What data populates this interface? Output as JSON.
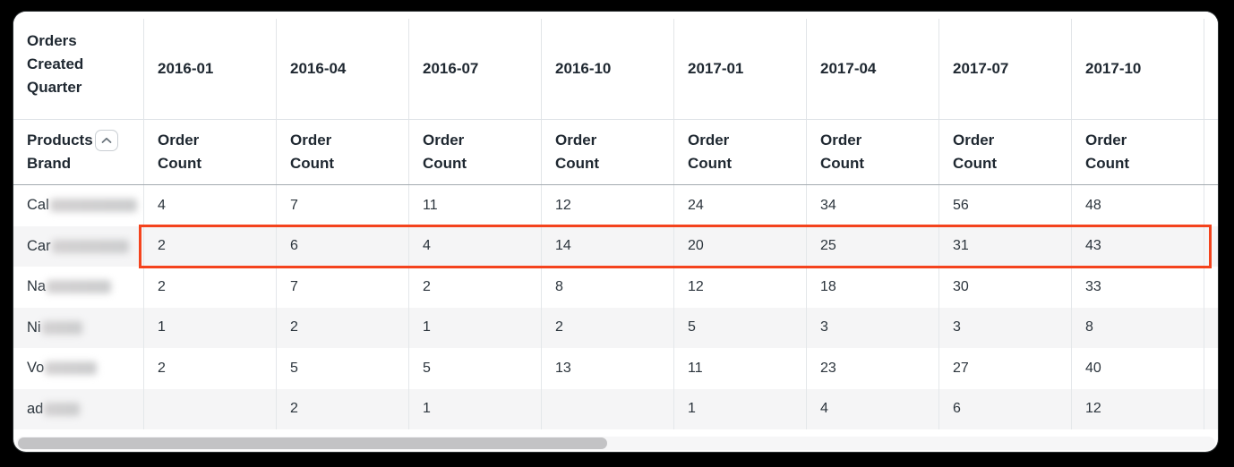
{
  "header": {
    "corner_label": "Orders Created Quarter",
    "row_dimension_label": "Products Brand",
    "collapse_icon": "chevron-up",
    "measure_label": "Order Count",
    "quarters": [
      "2016-01",
      "2016-04",
      "2016-07",
      "2016-10",
      "2017-01",
      "2017-04",
      "2017-07",
      "2017-10"
    ]
  },
  "rows": [
    {
      "brand_prefix": "Cal",
      "redacted": true,
      "highlighted": false,
      "values": [
        "4",
        "7",
        "11",
        "12",
        "24",
        "34",
        "56",
        "48"
      ]
    },
    {
      "brand_prefix": "Car",
      "redacted": true,
      "highlighted": true,
      "values": [
        "2",
        "6",
        "4",
        "14",
        "20",
        "25",
        "31",
        "43"
      ]
    },
    {
      "brand_prefix": "Na",
      "redacted": true,
      "highlighted": false,
      "values": [
        "2",
        "7",
        "2",
        "8",
        "12",
        "18",
        "30",
        "33"
      ]
    },
    {
      "brand_prefix": "Ni",
      "redacted": true,
      "highlighted": false,
      "values": [
        "1",
        "2",
        "1",
        "2",
        "5",
        "3",
        "3",
        "8"
      ]
    },
    {
      "brand_prefix": "Vo",
      "redacted": true,
      "highlighted": false,
      "values": [
        "2",
        "5",
        "5",
        "13",
        "11",
        "23",
        "27",
        "40"
      ]
    },
    {
      "brand_prefix": "ad",
      "redacted": true,
      "highlighted": false,
      "values": [
        "",
        "2",
        "1",
        "",
        "1",
        "4",
        "6",
        "12"
      ]
    }
  ],
  "highlight": {
    "row_brand_prefix": "Car",
    "border_color": "#f4431d"
  },
  "scrollbar": {
    "orientation": "horizontal"
  },
  "colors": {
    "window_background": "#ffffff",
    "page_background": "#000000",
    "zebra_row": "#f5f5f6",
    "grid_line": "#e2e5e8",
    "header_divider": "#a3aab0",
    "header_text": "#1f2831",
    "value_text": "#2b343c",
    "highlight_border": "#f4431d",
    "scroll_thumb": "#c3c3c5"
  }
}
